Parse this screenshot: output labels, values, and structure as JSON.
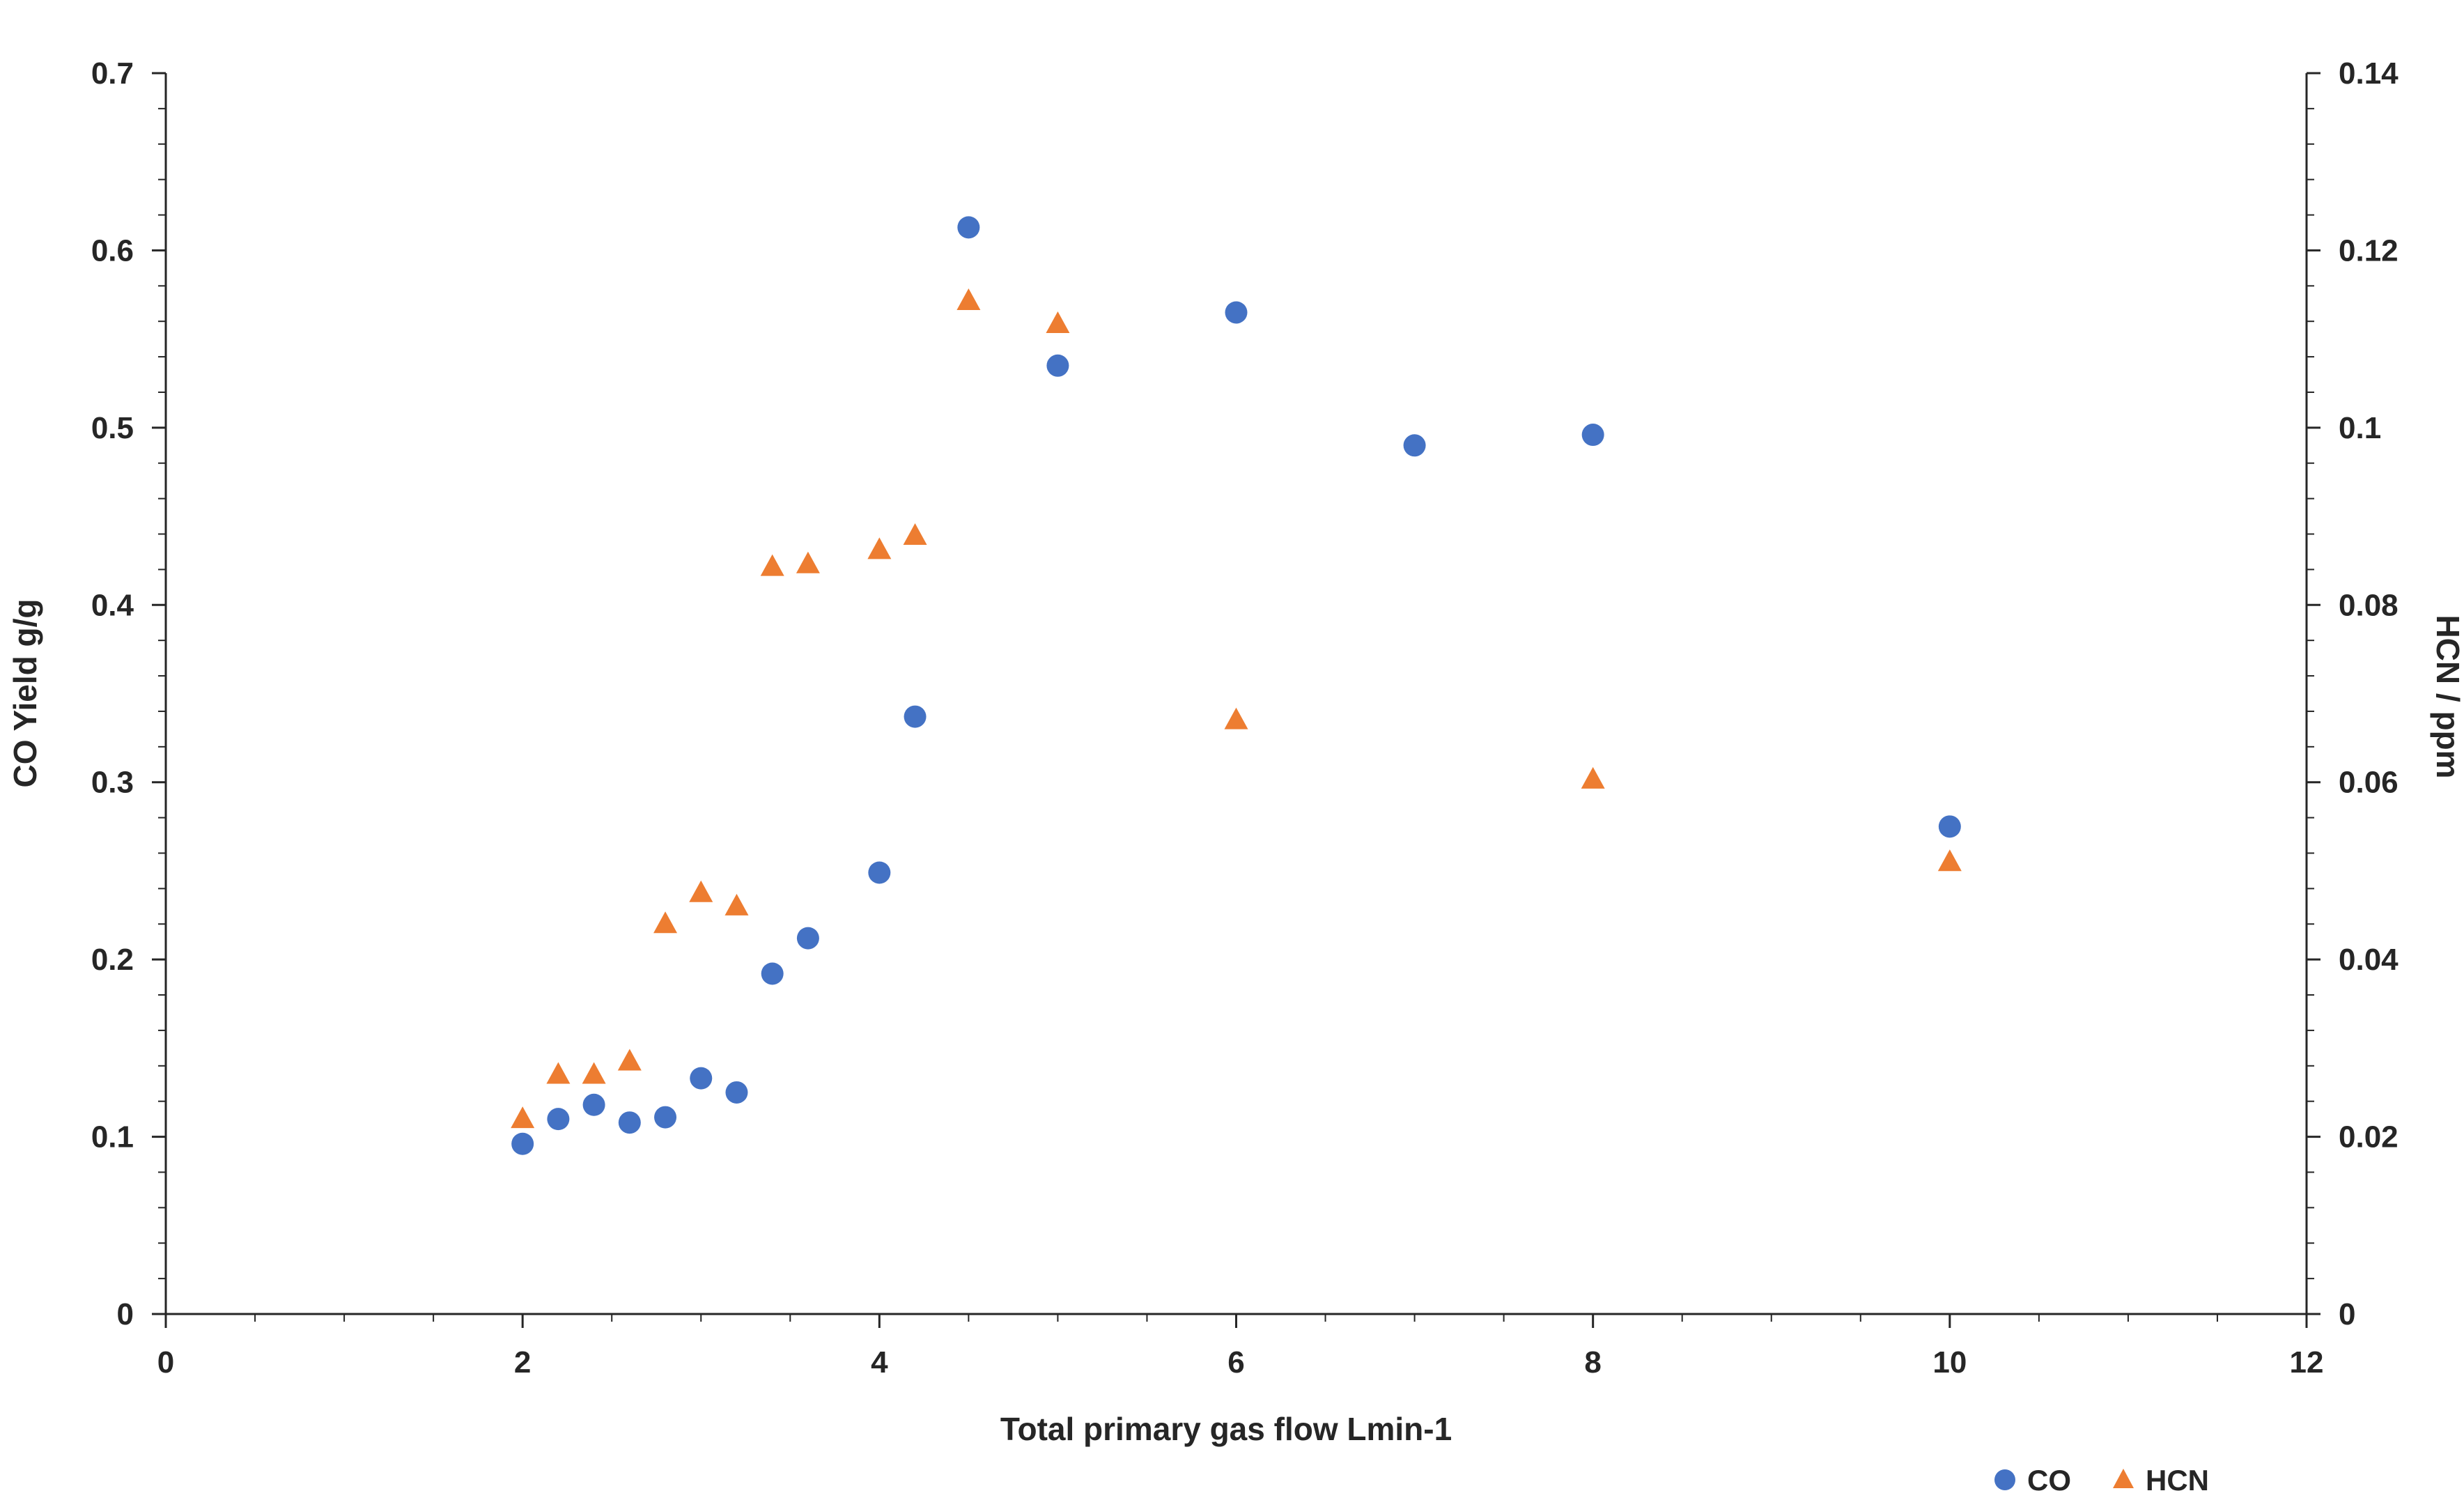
{
  "chart_data": {
    "type": "scatter",
    "title": "",
    "xlabel": "Total primary gas flow  Lmin-1",
    "ylabel_left": "CO Yield g/g",
    "ylabel_right": "HCN / ppm",
    "xlim": [
      0,
      12
    ],
    "x_major_ticks": [
      0,
      2,
      4,
      6,
      8,
      10,
      12
    ],
    "x_minor_step": 0.5,
    "ylim_left": [
      0,
      0.7
    ],
    "y_major_ticks_left": [
      0,
      0.1,
      0.2,
      0.3,
      0.4,
      0.5,
      0.6,
      0.7
    ],
    "y_minor_step_left": 0.02,
    "ylim_right": [
      0,
      0.14
    ],
    "y_major_ticks_right": [
      0,
      0.02,
      0.04,
      0.06,
      0.08,
      0.1,
      0.12,
      0.14
    ],
    "y_minor_step_right": 0.004,
    "grid": false,
    "legend_position": "bottom-right",
    "background": "#ffffff",
    "axis_color": "#262626",
    "series": [
      {
        "name": "CO",
        "axis": "left",
        "marker": "circle",
        "color": "#4472C4",
        "points": [
          [
            2.0,
            0.096
          ],
          [
            2.2,
            0.11
          ],
          [
            2.4,
            0.118
          ],
          [
            2.6,
            0.108
          ],
          [
            2.8,
            0.111
          ],
          [
            3.0,
            0.133
          ],
          [
            3.2,
            0.125
          ],
          [
            3.4,
            0.192
          ],
          [
            3.6,
            0.212
          ],
          [
            4.0,
            0.249
          ],
          [
            4.2,
            0.337
          ],
          [
            4.5,
            0.613
          ],
          [
            5.0,
            0.535
          ],
          [
            6.0,
            0.565
          ],
          [
            7.0,
            0.49
          ],
          [
            8.0,
            0.496
          ],
          [
            10.0,
            0.275
          ]
        ]
      },
      {
        "name": "HCN",
        "axis": "right",
        "marker": "triangle",
        "color": "#ED7D31",
        "points": [
          [
            2.0,
            0.022
          ],
          [
            2.2,
            0.027
          ],
          [
            2.4,
            0.027
          ],
          [
            2.6,
            0.0285
          ],
          [
            2.8,
            0.044
          ],
          [
            3.0,
            0.0475
          ],
          [
            3.2,
            0.046
          ],
          [
            3.4,
            0.0843
          ],
          [
            3.6,
            0.0846
          ],
          [
            4.0,
            0.0862
          ],
          [
            4.2,
            0.0878
          ],
          [
            4.5,
            0.1143
          ],
          [
            5.0,
            0.1117
          ],
          [
            6.0,
            0.067
          ],
          [
            8.0,
            0.0603
          ],
          [
            10.0,
            0.051
          ]
        ]
      }
    ]
  }
}
